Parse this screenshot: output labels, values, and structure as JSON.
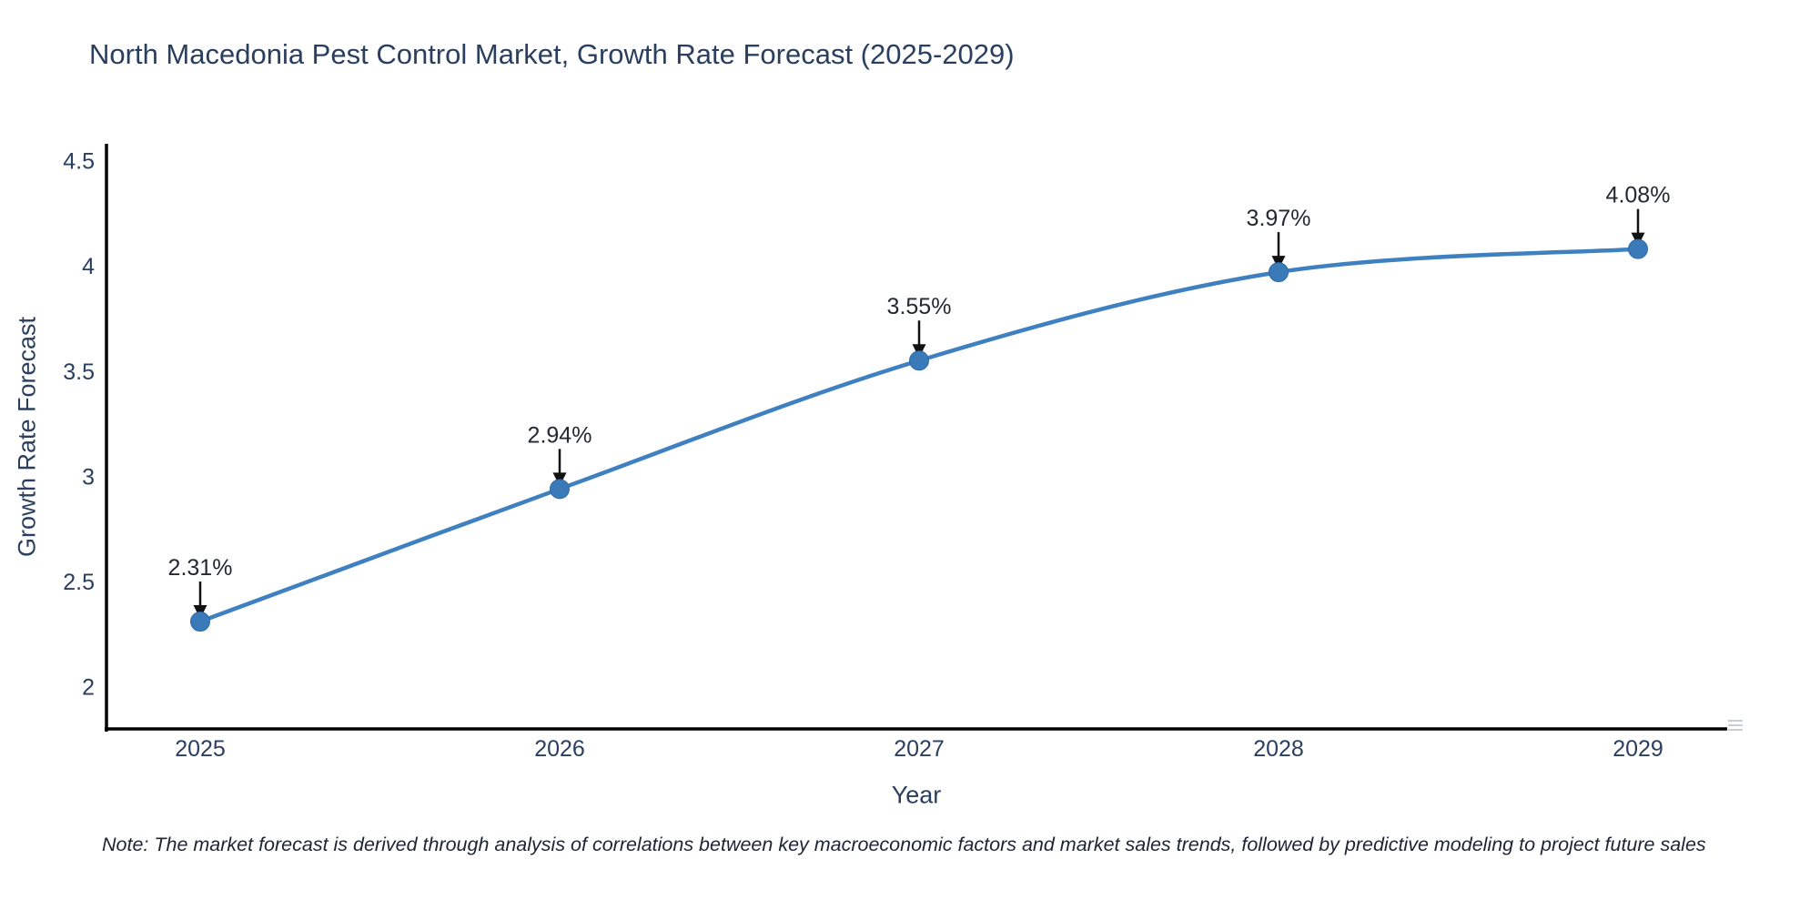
{
  "page": {
    "title": "North Macedonia Pest Control Market, Growth Rate Forecast (2025-2029)",
    "note": "Note: The market forecast is derived through analysis of correlations between key macroeconomic factors and market sales trends, followed by predictive modeling to project future sales"
  },
  "chart_data": {
    "type": "line",
    "title": "North Macedonia Pest Control Market, Growth Rate Forecast (2025-2029)",
    "categories": [
      "2025",
      "2026",
      "2027",
      "2028",
      "2029"
    ],
    "series": [
      {
        "name": "Growth Rate Forecast",
        "values": [
          2.31,
          2.94,
          3.55,
          3.97,
          4.08
        ]
      }
    ],
    "point_labels": [
      "2.31%",
      "2.94%",
      "3.55%",
      "3.97%",
      "4.08%"
    ],
    "xlabel": "Year",
    "ylabel": "Growth Rate Forecast",
    "yticks": [
      4.5,
      4,
      3.5,
      3,
      2.5,
      2
    ],
    "ylim": [
      1.8,
      4.58
    ],
    "line_shape": "spline",
    "grid": false,
    "legend_position": "none",
    "colors": {
      "line": "#3e80c0",
      "marker": "#3a7ab8",
      "marker_edge": "#2f6ba6",
      "axis": "#000000",
      "axis_text": "#2a3f5f",
      "point_label_text": "#23292f",
      "arrow": "#111111",
      "background": "#ffffff"
    }
  }
}
